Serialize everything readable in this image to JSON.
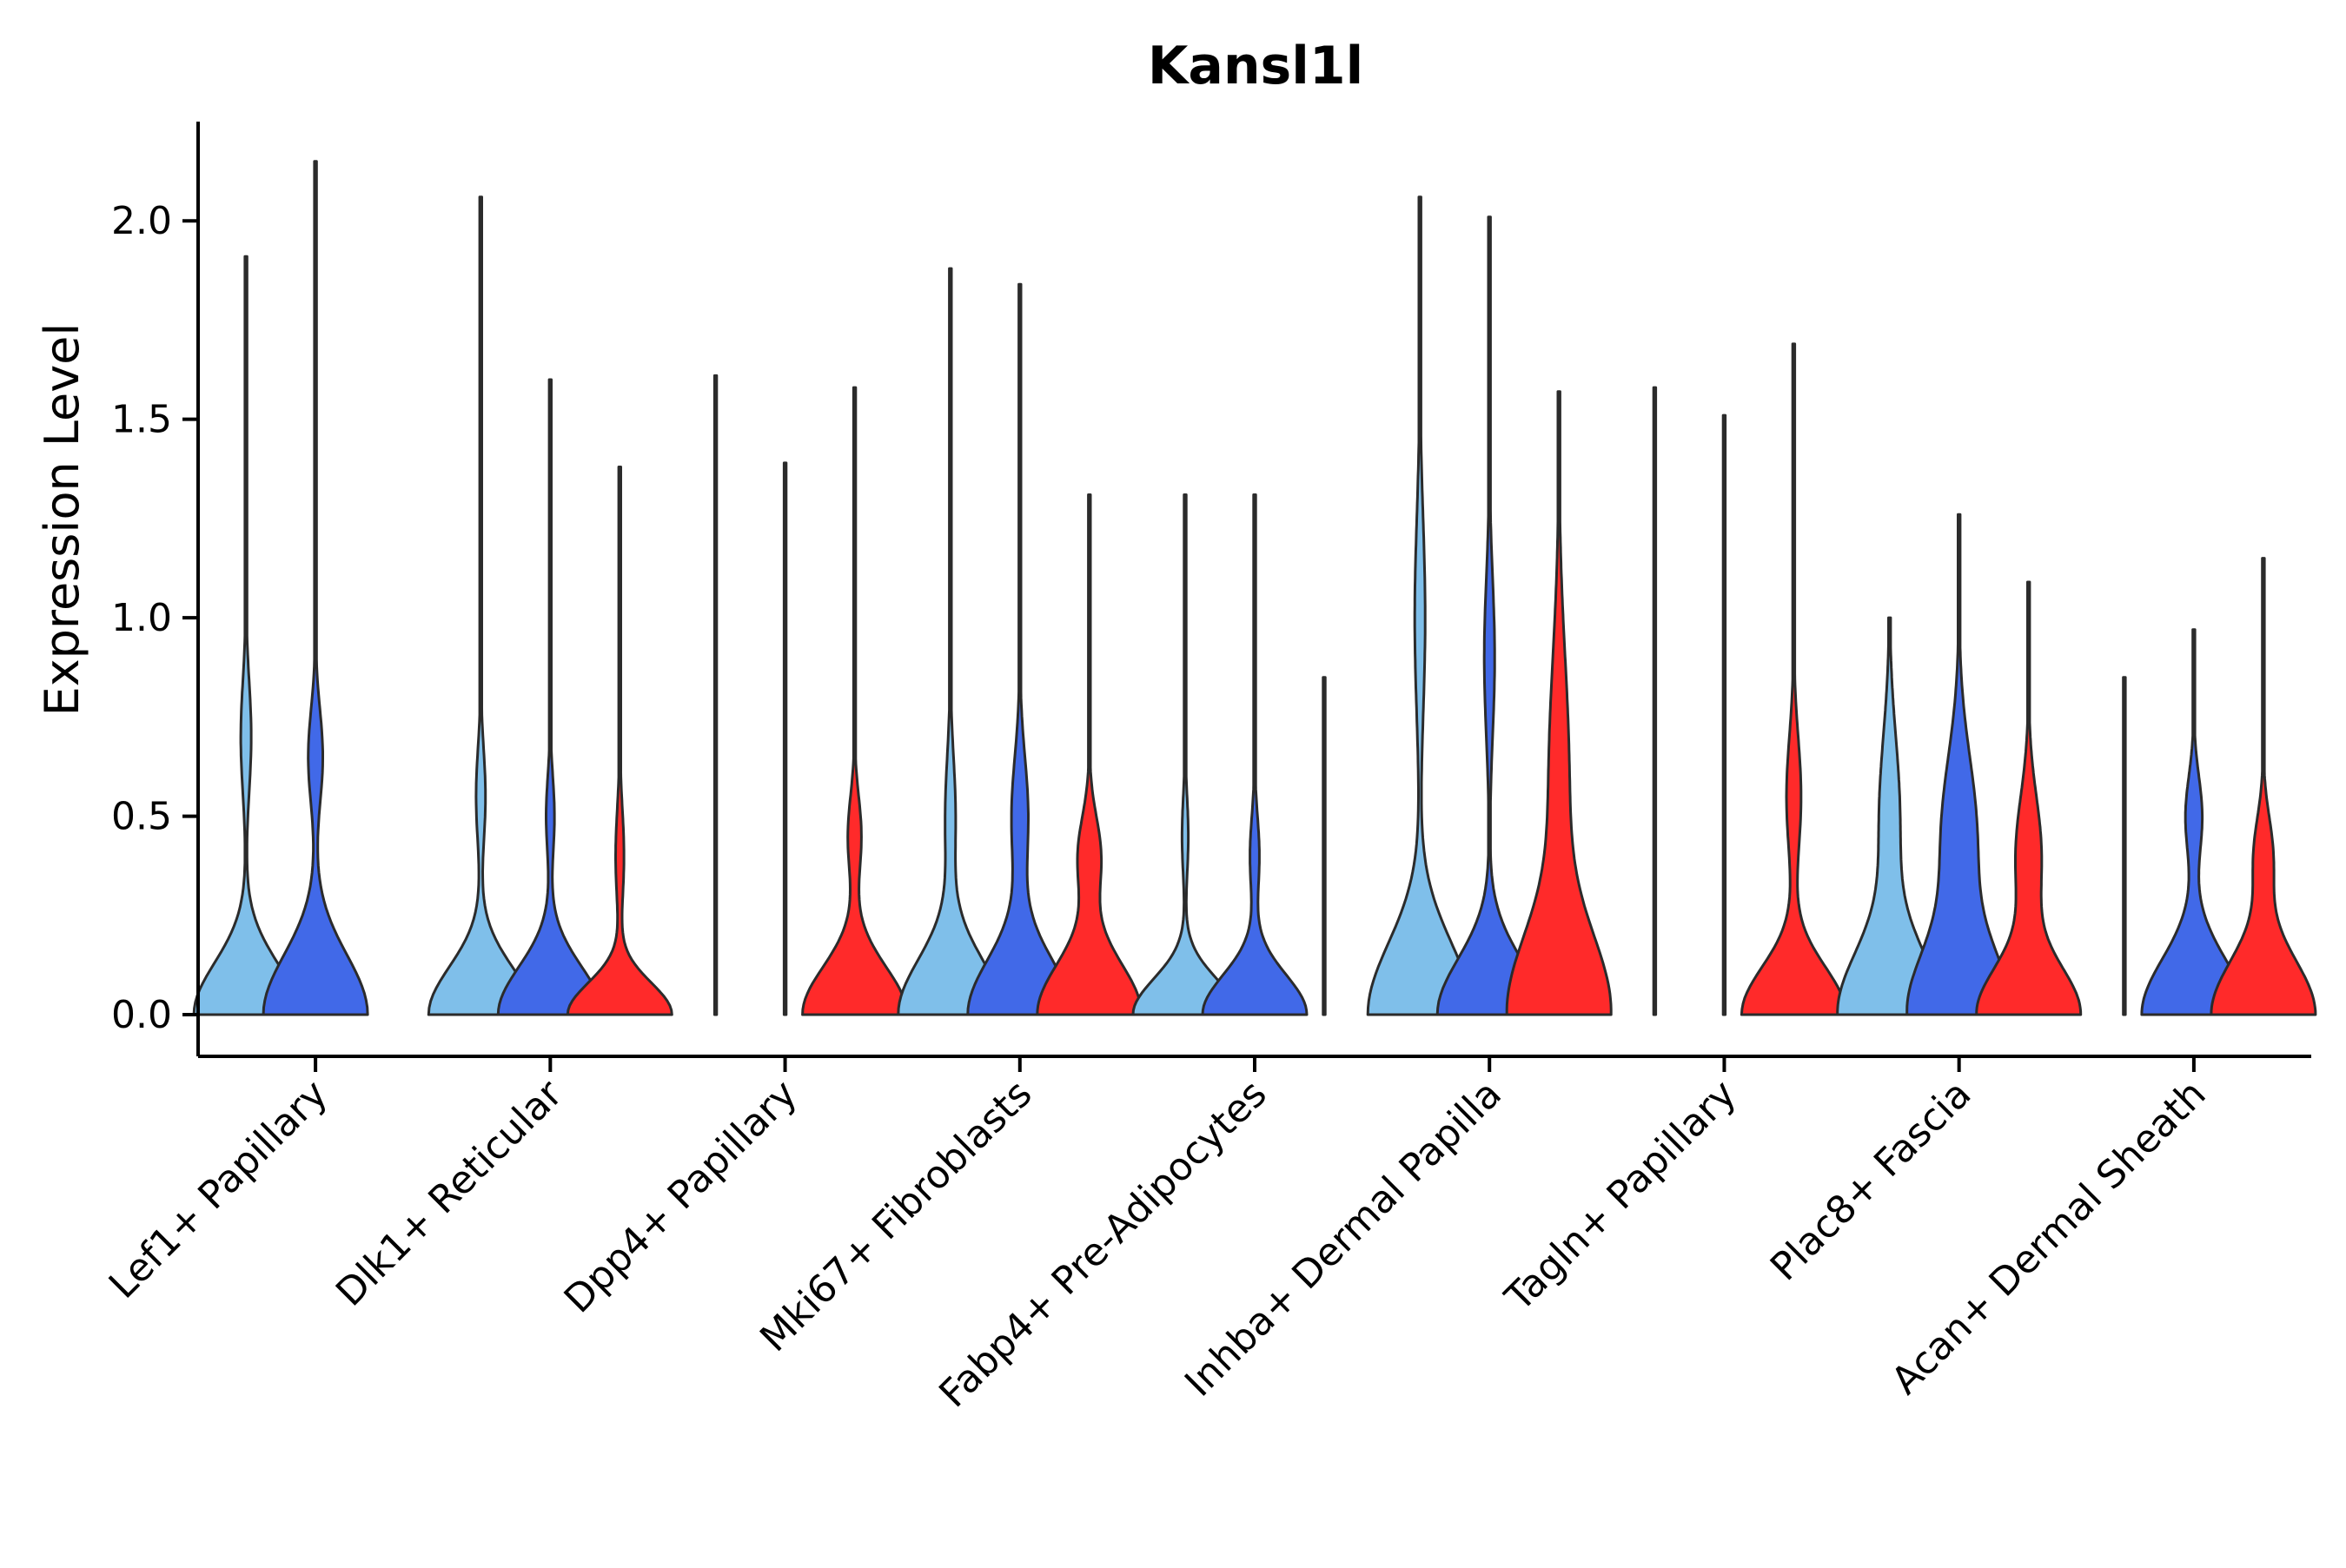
{
  "chart_data": {
    "type": "violin",
    "title": "Kansl1l",
    "xlabel": "",
    "ylabel": "Expression Level",
    "ylim": [
      -0.105,
      2.25
    ],
    "yticks": [
      0.0,
      0.5,
      1.0,
      1.5,
      2.0
    ],
    "ytick_labels": [
      "0.0",
      "0.5",
      "1.0",
      "1.5",
      "2.0"
    ],
    "grid": false,
    "legend": "none",
    "group_colors": [
      "#7fbfea",
      "#4169e8",
      "#ff2a2a"
    ],
    "categories": [
      "Lef1+ Papillary",
      "Dlk1+ Reticular",
      "Dpp4+ Papillary",
      "Mki67+ Fibroblasts",
      "Fabp4+ Pre-Adipocytes",
      "Inhba+ Dermal Papilla",
      "Tagln+ Papillary",
      "Plac8+ Fascia",
      "Acan+ Dermal Sheath"
    ],
    "violins": [
      {
        "category": 0,
        "group": 0,
        "max": 1.91,
        "min": 0,
        "modes": [
          [
            0.0,
            1.0,
            0.13
          ],
          [
            0.7,
            0.1,
            0.14
          ]
        ]
      },
      {
        "category": 0,
        "group": 1,
        "max": 2.15,
        "min": 0,
        "modes": [
          [
            0.0,
            1.0,
            0.15
          ],
          [
            0.65,
            0.14,
            0.12
          ]
        ]
      },
      {
        "category": 1,
        "group": 0,
        "max": 2.06,
        "min": 0,
        "modes": [
          [
            0.0,
            1.0,
            0.12
          ],
          [
            0.55,
            0.09,
            0.12
          ]
        ]
      },
      {
        "category": 1,
        "group": 1,
        "max": 1.6,
        "min": 0,
        "modes": [
          [
            0.0,
            1.0,
            0.12
          ],
          [
            0.5,
            0.08,
            0.1
          ]
        ]
      },
      {
        "category": 1,
        "group": 2,
        "max": 1.38,
        "min": 0,
        "modes": [
          [
            0.0,
            1.0,
            0.08
          ],
          [
            0.4,
            0.08,
            0.12
          ]
        ]
      },
      {
        "category": 2,
        "group": 0,
        "max": 1.61,
        "min": 0,
        "modes": [
          [
            0.0,
            0.0,
            0.05
          ]
        ]
      },
      {
        "category": 2,
        "group": 1,
        "max": 1.39,
        "min": 0,
        "modes": [
          [
            0.0,
            0.0,
            0.05
          ]
        ]
      },
      {
        "category": 2,
        "group": 2,
        "max": 1.58,
        "min": 0,
        "modes": [
          [
            0.0,
            1.0,
            0.12
          ],
          [
            0.45,
            0.13,
            0.1
          ]
        ]
      },
      {
        "category": 3,
        "group": 0,
        "max": 1.88,
        "min": 0,
        "modes": [
          [
            0.0,
            1.0,
            0.14
          ],
          [
            0.5,
            0.1,
            0.15
          ]
        ]
      },
      {
        "category": 3,
        "group": 1,
        "max": 1.84,
        "min": 0,
        "modes": [
          [
            0.0,
            1.0,
            0.14
          ],
          [
            0.5,
            0.16,
            0.15
          ]
        ]
      },
      {
        "category": 3,
        "group": 2,
        "max": 1.31,
        "min": 0,
        "modes": [
          [
            0.0,
            1.0,
            0.13
          ],
          [
            0.4,
            0.22,
            0.1
          ]
        ]
      },
      {
        "category": 4,
        "group": 0,
        "max": 1.31,
        "min": 0,
        "modes": [
          [
            0.0,
            1.0,
            0.09
          ],
          [
            0.45,
            0.06,
            0.1
          ]
        ]
      },
      {
        "category": 4,
        "group": 1,
        "max": 1.31,
        "min": 0,
        "modes": [
          [
            0.0,
            1.0,
            0.1
          ],
          [
            0.4,
            0.09,
            0.1
          ]
        ]
      },
      {
        "category": 4,
        "group": 2,
        "max": 0.85,
        "min": 0,
        "modes": [
          [
            0.0,
            0.0,
            0.05
          ]
        ]
      },
      {
        "category": 5,
        "group": 0,
        "max": 2.06,
        "min": 0,
        "modes": [
          [
            0.0,
            1.0,
            0.18
          ],
          [
            1.0,
            0.1,
            0.25
          ]
        ]
      },
      {
        "category": 5,
        "group": 1,
        "max": 2.01,
        "min": 0,
        "modes": [
          [
            0.0,
            1.0,
            0.14
          ],
          [
            0.9,
            0.1,
            0.2
          ]
        ]
      },
      {
        "category": 5,
        "group": 2,
        "max": 1.57,
        "min": 0,
        "modes": [
          [
            0.0,
            1.0,
            0.2
          ],
          [
            0.6,
            0.2,
            0.3
          ]
        ]
      },
      {
        "category": 6,
        "group": 0,
        "max": 1.58,
        "min": 0,
        "modes": [
          [
            0.0,
            0.0,
            0.05
          ]
        ]
      },
      {
        "category": 6,
        "group": 1,
        "max": 1.51,
        "min": 0,
        "modes": [
          [
            0.0,
            0.0,
            0.05
          ]
        ]
      },
      {
        "category": 6,
        "group": 2,
        "max": 1.69,
        "min": 0,
        "modes": [
          [
            0.0,
            1.0,
            0.12
          ],
          [
            0.55,
            0.14,
            0.15
          ]
        ]
      },
      {
        "category": 7,
        "group": 0,
        "max": 1.0,
        "min": 0,
        "modes": [
          [
            0.0,
            1.0,
            0.16
          ],
          [
            0.5,
            0.2,
            0.2
          ]
        ]
      },
      {
        "category": 7,
        "group": 1,
        "max": 1.26,
        "min": 0,
        "modes": [
          [
            0.0,
            1.0,
            0.16
          ],
          [
            0.45,
            0.35,
            0.2
          ]
        ]
      },
      {
        "category": 7,
        "group": 2,
        "max": 1.09,
        "min": 0,
        "modes": [
          [
            0.0,
            1.0,
            0.12
          ],
          [
            0.4,
            0.25,
            0.15
          ]
        ]
      },
      {
        "category": 8,
        "group": 0,
        "max": 0.85,
        "min": 0,
        "modes": [
          [
            0.0,
            0.0,
            0.05
          ]
        ]
      },
      {
        "category": 8,
        "group": 1,
        "max": 0.97,
        "min": 0,
        "modes": [
          [
            0.0,
            1.0,
            0.14
          ],
          [
            0.5,
            0.16,
            0.1
          ]
        ]
      },
      {
        "category": 8,
        "group": 2,
        "max": 1.15,
        "min": 0,
        "modes": [
          [
            0.0,
            1.0,
            0.14
          ],
          [
            0.4,
            0.18,
            0.1
          ]
        ]
      }
    ]
  }
}
